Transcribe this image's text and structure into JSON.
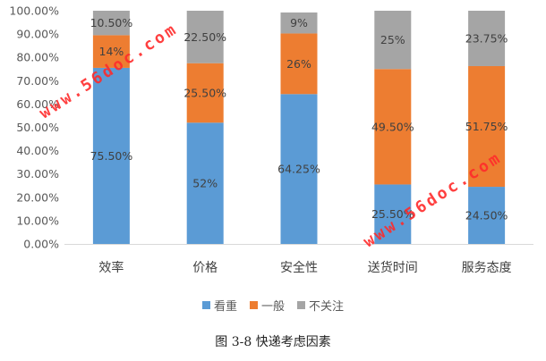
{
  "chart_data": {
    "type": "bar",
    "stacked": true,
    "categories": [
      "效率",
      "价格",
      "安全性",
      "送货时间",
      "服务态度"
    ],
    "series": [
      {
        "name": "看重",
        "color": "#5b9bd5",
        "values": [
          75.5,
          52,
          64.25,
          25.5,
          24.5
        ],
        "labels": [
          "75.50%",
          "52%",
          "64.25%",
          "25.50%",
          "24.50%"
        ]
      },
      {
        "name": "一般",
        "color": "#ed7d31",
        "values": [
          14,
          25.5,
          26,
          49.5,
          51.75
        ],
        "labels": [
          "14%",
          "25.50%",
          "26%",
          "49.50%",
          "51.75%"
        ]
      },
      {
        "name": "不关注",
        "color": "#a5a5a5",
        "values": [
          10.5,
          22.5,
          9,
          25,
          23.75
        ],
        "labels": [
          "10.50%",
          "22.50%",
          "9%",
          "25%",
          "23.75%"
        ]
      }
    ],
    "ylim": [
      0,
      100
    ],
    "yticks": [
      "0.00%",
      "10.00%",
      "20.00%",
      "30.00%",
      "40.00%",
      "50.00%",
      "60.00%",
      "70.00%",
      "80.00%",
      "90.00%",
      "100.00%"
    ],
    "grid": false,
    "legend_position": "bottom"
  },
  "caption": "图 3-8 快递考虑因素",
  "watermarks": [
    "www.56doc.com",
    "www.56doc.com"
  ]
}
